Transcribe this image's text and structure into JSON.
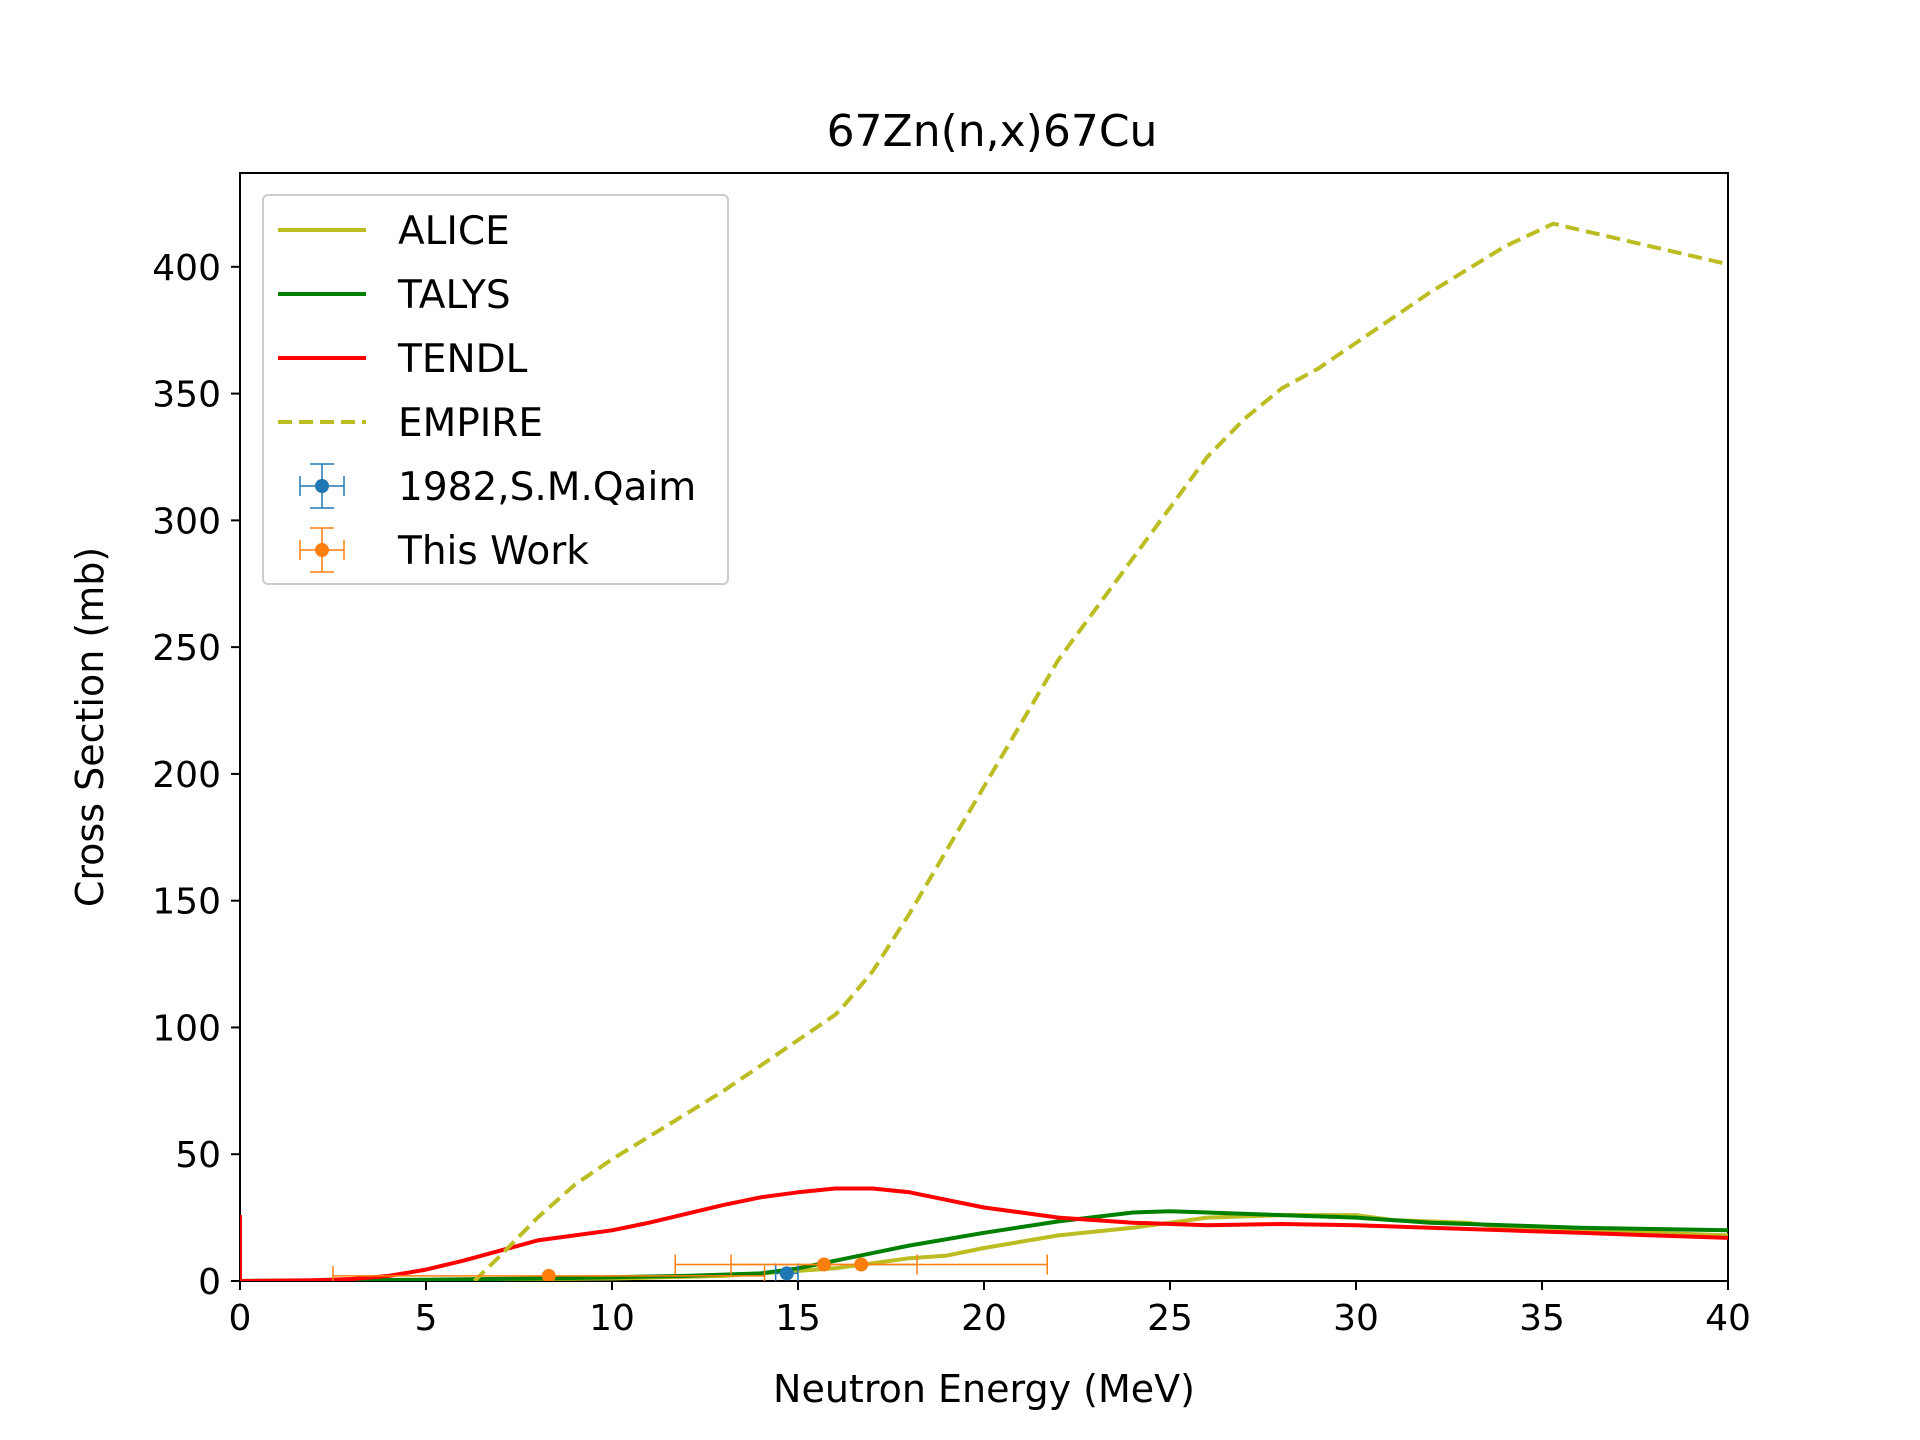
{
  "chart_data": {
    "type": "line",
    "title": "67Zn(n,x)67Cu",
    "xlabel": "Neutron Energy (MeV)",
    "ylabel": "Cross Section (mb)",
    "xlim": [
      0,
      40
    ],
    "ylim": [
      0,
      437
    ],
    "xticks": [
      0,
      5,
      10,
      15,
      20,
      25,
      30,
      35,
      40
    ],
    "yticks": [
      0,
      50,
      100,
      150,
      200,
      250,
      300,
      350,
      400
    ],
    "grid": false,
    "legend_position": "upper-left",
    "series": [
      {
        "name": "ALICE",
        "style": "solid",
        "color": "#bcbd22",
        "points": [
          [
            0,
            0
          ],
          [
            5,
            0.5
          ],
          [
            10,
            1
          ],
          [
            13,
            2
          ],
          [
            15,
            4
          ],
          [
            16,
            5
          ],
          [
            18,
            9
          ],
          [
            19,
            10
          ],
          [
            20,
            13
          ],
          [
            22,
            18
          ],
          [
            24,
            21
          ],
          [
            25,
            23
          ],
          [
            26,
            25
          ],
          [
            28,
            26
          ],
          [
            30,
            26
          ],
          [
            31,
            24
          ],
          [
            33,
            23
          ],
          [
            34,
            21
          ],
          [
            36,
            20
          ],
          [
            38,
            19
          ],
          [
            40,
            18
          ]
        ]
      },
      {
        "name": "TALYS",
        "style": "solid",
        "color": "#008000",
        "points": [
          [
            0,
            0
          ],
          [
            5,
            0.5
          ],
          [
            8,
            1
          ],
          [
            10,
            1.5
          ],
          [
            12,
            2
          ],
          [
            14,
            3
          ],
          [
            15,
            5
          ],
          [
            16,
            8
          ],
          [
            18,
            14
          ],
          [
            20,
            19
          ],
          [
            22,
            23.5
          ],
          [
            24,
            27
          ],
          [
            25,
            27.5
          ],
          [
            26,
            27
          ],
          [
            28,
            26
          ],
          [
            30,
            25
          ],
          [
            32,
            23
          ],
          [
            34,
            22
          ],
          [
            36,
            21
          ],
          [
            38,
            20.5
          ],
          [
            40,
            20
          ]
        ]
      },
      {
        "name": "TENDL",
        "style": "solid",
        "color": "#ff0000",
        "points": [
          [
            0,
            0
          ],
          [
            2,
            0.3
          ],
          [
            3,
            0.8
          ],
          [
            4,
            2
          ],
          [
            5,
            4.5
          ],
          [
            6,
            8
          ],
          [
            7,
            12
          ],
          [
            8,
            16
          ],
          [
            9,
            18
          ],
          [
            10,
            20
          ],
          [
            11,
            23
          ],
          [
            12,
            26.5
          ],
          [
            13,
            30
          ],
          [
            14,
            33
          ],
          [
            15,
            35
          ],
          [
            16,
            36.5
          ],
          [
            17,
            36.5
          ],
          [
            18,
            35
          ],
          [
            19,
            32
          ],
          [
            20,
            29
          ],
          [
            21,
            27
          ],
          [
            22,
            25
          ],
          [
            24,
            23
          ],
          [
            26,
            22
          ],
          [
            28,
            22.5
          ],
          [
            30,
            22
          ],
          [
            32,
            21
          ],
          [
            34,
            20
          ],
          [
            36,
            19
          ],
          [
            38,
            18
          ],
          [
            40,
            17
          ]
        ]
      },
      {
        "name": "EMPIRE",
        "style": "dashed",
        "color": "#bcbd22",
        "points": [
          [
            6.3,
            0
          ],
          [
            7,
            10
          ],
          [
            8,
            25
          ],
          [
            9,
            38
          ],
          [
            10,
            48
          ],
          [
            11,
            57
          ],
          [
            12,
            66
          ],
          [
            13,
            75
          ],
          [
            14,
            85
          ],
          [
            15,
            95
          ],
          [
            16,
            105
          ],
          [
            16.2,
            108
          ],
          [
            17,
            122
          ],
          [
            18,
            145
          ],
          [
            19,
            170
          ],
          [
            20,
            195
          ],
          [
            21,
            220
          ],
          [
            22,
            245
          ],
          [
            23,
            265
          ],
          [
            24,
            285
          ],
          [
            25,
            305
          ],
          [
            26,
            325
          ],
          [
            27,
            340
          ],
          [
            28,
            352
          ],
          [
            29,
            360
          ],
          [
            30,
            370
          ],
          [
            32,
            390
          ],
          [
            34,
            408
          ],
          [
            35.3,
            417
          ],
          [
            40,
            401
          ]
        ]
      }
    ],
    "scatter_series": [
      {
        "name": "1982,S.M.Qaim",
        "color": "#1f77b4",
        "points": [
          {
            "x": 14.7,
            "y": 3,
            "xerr": 0.3,
            "yerr": 1
          }
        ]
      },
      {
        "name": "This Work",
        "color": "#ff7f0e",
        "points": [
          {
            "x": 8.3,
            "y": 2,
            "xerr": 5.8,
            "yerr": 0.5
          },
          {
            "x": 15.7,
            "y": 6.5,
            "xerr": 2.5,
            "yerr": 0.8
          },
          {
            "x": 16.7,
            "y": 6.5,
            "xerr": 5.0,
            "yerr": 0.5
          }
        ]
      }
    ],
    "extra_marks": [
      {
        "name": "TENDL",
        "x": 0,
        "y_from": 0,
        "y_to": 26,
        "color": "#ff0000"
      }
    ]
  }
}
